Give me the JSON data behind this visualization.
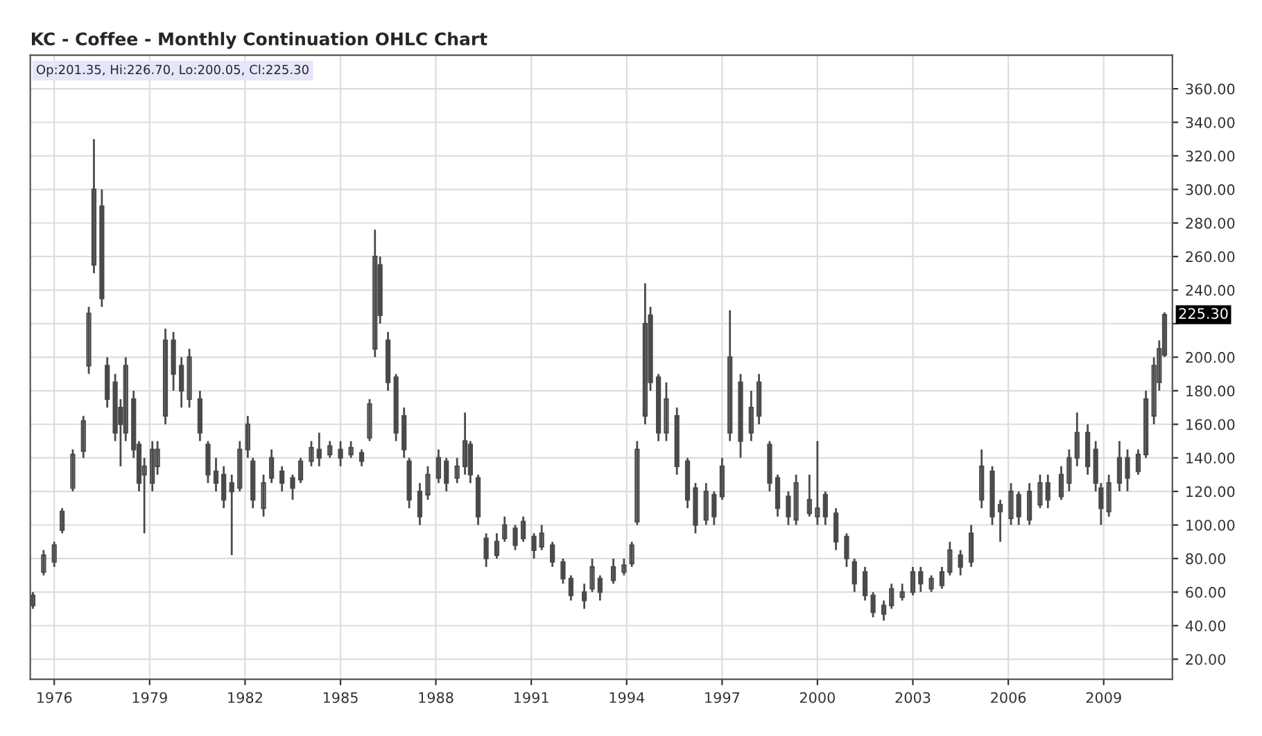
{
  "chart_data": {
    "type": "candlestick",
    "title": "KC - Coffee - Monthly Continuation OHLC Chart",
    "color": "#4a4a4a",
    "grid": true,
    "xlim": [
      "1975-04",
      "2011-03"
    ],
    "xticks": [
      "1976",
      "1979",
      "1982",
      "1985",
      "1988",
      "1991",
      "1994",
      "1997",
      "2000",
      "2003",
      "2006",
      "2009"
    ],
    "ylim": [
      8,
      380
    ],
    "yticks": [
      {
        "value": 20,
        "label": "20.00"
      },
      {
        "value": 40,
        "label": "40.00"
      },
      {
        "value": 60,
        "label": "60.00"
      },
      {
        "value": 80,
        "label": "80.00"
      },
      {
        "value": 100,
        "label": "100.00"
      },
      {
        "value": 120,
        "label": "120.00"
      },
      {
        "value": 140,
        "label": "140.00"
      },
      {
        "value": 160,
        "label": "160.00"
      },
      {
        "value": 180,
        "label": "180.00"
      },
      {
        "value": 200,
        "label": "200.00"
      },
      {
        "value": 220,
        "label": null
      },
      {
        "value": 240,
        "label": "240.00"
      },
      {
        "value": 260,
        "label": "260.00"
      },
      {
        "value": 280,
        "label": "280.00"
      },
      {
        "value": 300,
        "label": "300.00"
      },
      {
        "value": 320,
        "label": "320.00"
      },
      {
        "value": 340,
        "label": "340.00"
      },
      {
        "value": 360,
        "label": "360.00"
      }
    ],
    "annotations": [
      "Op:201.35, Hi:226.70, Lo:200.05, Cl:225.30",
      "225.30"
    ],
    "x": [
      "1975-05",
      "1975-09",
      "1976-01",
      "1976-04",
      "1976-08",
      "1976-12",
      "1977-02",
      "1977-04",
      "1977-07",
      "1977-09",
      "1977-12",
      "1978-02",
      "1978-04",
      "1978-07",
      "1978-09",
      "1978-11",
      "1979-02",
      "1979-04",
      "1979-07",
      "1979-10",
      "1980-01",
      "1980-04",
      "1980-08",
      "1980-11",
      "1981-02",
      "1981-05",
      "1981-08",
      "1981-11",
      "1982-02",
      "1982-04",
      "1982-08",
      "1982-11",
      "1983-03",
      "1983-07",
      "1983-10",
      "1984-02",
      "1984-05",
      "1984-09",
      "1985-01",
      "1985-05",
      "1985-09",
      "1985-12",
      "1986-02",
      "1986-04",
      "1986-07",
      "1986-10",
      "1987-01",
      "1987-03",
      "1987-07",
      "1987-10",
      "1988-02",
      "1988-05",
      "1988-09",
      "1988-12",
      "1989-02",
      "1989-05",
      "1989-08",
      "1989-12",
      "1990-03",
      "1990-07",
      "1990-10",
      "1991-02",
      "1991-05",
      "1991-09",
      "1992-01",
      "1992-04",
      "1992-09",
      "1992-12",
      "1993-03",
      "1993-08",
      "1993-12",
      "1994-03",
      "1994-05",
      "1994-08",
      "1994-10",
      "1995-01",
      "1995-04",
      "1995-08",
      "1995-12",
      "1996-03",
      "1996-07",
      "1996-10",
      "1997-01",
      "1997-04",
      "1997-08",
      "1997-12",
      "1998-03",
      "1998-07",
      "1998-10",
      "1999-02",
      "1999-05",
      "1999-10",
      "2000-01",
      "2000-04",
      "2000-08",
      "2000-12",
      "2001-03",
      "2001-07",
      "2001-10",
      "2002-02",
      "2002-05",
      "2002-09",
      "2003-01",
      "2003-04",
      "2003-08",
      "2003-12",
      "2004-03",
      "2004-07",
      "2004-11",
      "2005-03",
      "2005-07",
      "2005-10",
      "2006-02",
      "2006-05",
      "2006-09",
      "2007-01",
      "2007-04",
      "2007-09",
      "2007-12",
      "2008-03",
      "2008-07",
      "2008-10",
      "2008-12",
      "2009-03",
      "2009-07",
      "2009-10",
      "2010-02",
      "2010-05",
      "2010-08",
      "2010-10",
      "2010-12"
    ],
    "ohlc": [
      [
        52,
        60,
        50,
        58
      ],
      [
        72,
        85,
        70,
        82
      ],
      [
        78,
        90,
        75,
        88
      ],
      [
        97,
        110,
        95,
        108
      ],
      [
        122,
        145,
        120,
        142
      ],
      [
        144,
        165,
        140,
        162
      ],
      [
        195,
        230,
        190,
        226
      ],
      [
        255,
        330,
        250,
        300
      ],
      [
        290,
        300,
        230,
        235
      ],
      [
        195,
        200,
        170,
        175
      ],
      [
        185,
        190,
        150,
        155
      ],
      [
        170,
        175,
        135,
        160
      ],
      [
        155,
        200,
        150,
        195
      ],
      [
        175,
        180,
        140,
        145
      ],
      [
        148,
        150,
        120,
        125
      ],
      [
        130,
        140,
        95,
        135
      ],
      [
        125,
        150,
        120,
        145
      ],
      [
        135,
        150,
        130,
        145
      ],
      [
        165,
        217,
        160,
        210
      ],
      [
        210,
        215,
        180,
        190
      ],
      [
        195,
        200,
        170,
        180
      ],
      [
        175,
        205,
        170,
        200
      ],
      [
        175,
        180,
        150,
        155
      ],
      [
        148,
        150,
        125,
        130
      ],
      [
        132,
        140,
        120,
        125
      ],
      [
        130,
        135,
        110,
        115
      ],
      [
        125,
        130,
        82,
        120
      ],
      [
        122,
        150,
        120,
        145
      ],
      [
        145,
        165,
        140,
        160
      ],
      [
        138,
        140,
        110,
        115
      ],
      [
        110,
        130,
        105,
        125
      ],
      [
        128,
        145,
        125,
        140
      ],
      [
        132,
        135,
        120,
        125
      ],
      [
        128,
        130,
        115,
        122
      ],
      [
        127,
        140,
        125,
        138
      ],
      [
        138,
        150,
        135,
        146
      ],
      [
        145,
        155,
        135,
        140
      ],
      [
        142,
        150,
        140,
        147
      ],
      [
        145,
        150,
        135,
        140
      ],
      [
        142,
        150,
        140,
        146
      ],
      [
        143,
        145,
        135,
        138
      ],
      [
        152,
        175,
        150,
        172
      ],
      [
        205,
        276,
        200,
        260
      ],
      [
        255,
        260,
        220,
        225
      ],
      [
        210,
        215,
        180,
        185
      ],
      [
        188,
        190,
        150,
        155
      ],
      [
        165,
        170,
        140,
        145
      ],
      [
        138,
        140,
        110,
        115
      ],
      [
        120,
        125,
        100,
        105
      ],
      [
        118,
        135,
        115,
        130
      ],
      [
        128,
        145,
        125,
        140
      ],
      [
        138,
        140,
        120,
        125
      ],
      [
        128,
        140,
        125,
        135
      ],
      [
        135,
        167,
        130,
        150
      ],
      [
        148,
        150,
        125,
        130
      ],
      [
        128,
        130,
        100,
        105
      ],
      [
        92,
        95,
        75,
        80
      ],
      [
        82,
        95,
        80,
        90
      ],
      [
        92,
        105,
        90,
        100
      ],
      [
        98,
        100,
        85,
        88
      ],
      [
        92,
        105,
        90,
        102
      ],
      [
        93,
        95,
        80,
        85
      ],
      [
        87,
        100,
        85,
        95
      ],
      [
        88,
        90,
        75,
        78
      ],
      [
        78,
        80,
        65,
        68
      ],
      [
        68,
        70,
        55,
        58
      ],
      [
        60,
        65,
        50,
        55
      ],
      [
        62,
        80,
        60,
        75
      ],
      [
        68,
        70,
        55,
        60
      ],
      [
        67,
        80,
        65,
        75
      ],
      [
        72,
        80,
        70,
        76
      ],
      [
        77,
        90,
        75,
        88
      ],
      [
        102,
        150,
        100,
        145
      ],
      [
        165,
        244,
        160,
        220
      ],
      [
        225,
        230,
        180,
        185
      ],
      [
        188,
        190,
        150,
        155
      ],
      [
        155,
        185,
        150,
        175
      ],
      [
        165,
        170,
        130,
        135
      ],
      [
        138,
        140,
        110,
        115
      ],
      [
        122,
        125,
        95,
        100
      ],
      [
        103,
        125,
        100,
        120
      ],
      [
        118,
        120,
        100,
        105
      ],
      [
        117,
        140,
        115,
        135
      ],
      [
        155,
        228,
        150,
        200
      ],
      [
        185,
        190,
        140,
        150
      ],
      [
        155,
        180,
        150,
        170
      ],
      [
        165,
        190,
        160,
        185
      ],
      [
        148,
        150,
        120,
        125
      ],
      [
        128,
        130,
        105,
        110
      ],
      [
        117,
        120,
        100,
        105
      ],
      [
        103,
        130,
        100,
        125
      ],
      [
        107,
        130,
        105,
        115
      ],
      [
        105,
        150,
        100,
        110
      ],
      [
        118,
        120,
        100,
        105
      ],
      [
        107,
        110,
        85,
        90
      ],
      [
        93,
        95,
        75,
        80
      ],
      [
        78,
        80,
        60,
        65
      ],
      [
        72,
        75,
        55,
        58
      ],
      [
        58,
        60,
        45,
        48
      ],
      [
        47,
        55,
        43,
        52
      ],
      [
        52,
        65,
        50,
        62
      ],
      [
        57,
        65,
        55,
        60
      ],
      [
        60,
        75,
        58,
        72
      ],
      [
        72,
        75,
        60,
        65
      ],
      [
        62,
        70,
        60,
        68
      ],
      [
        64,
        75,
        62,
        72
      ],
      [
        72,
        90,
        70,
        85
      ],
      [
        82,
        85,
        70,
        75
      ],
      [
        78,
        100,
        75,
        95
      ],
      [
        115,
        145,
        110,
        135
      ],
      [
        132,
        135,
        100,
        105
      ],
      [
        108,
        115,
        90,
        112
      ],
      [
        104,
        125,
        100,
        120
      ],
      [
        118,
        120,
        100,
        105
      ],
      [
        103,
        125,
        100,
        120
      ],
      [
        112,
        130,
        110,
        125
      ],
      [
        125,
        130,
        110,
        115
      ],
      [
        117,
        135,
        115,
        130
      ],
      [
        125,
        145,
        120,
        140
      ],
      [
        140,
        167,
        135,
        155
      ],
      [
        155,
        160,
        130,
        135
      ],
      [
        145,
        150,
        120,
        125
      ],
      [
        122,
        125,
        100,
        110
      ],
      [
        108,
        130,
        105,
        125
      ],
      [
        125,
        150,
        120,
        140
      ],
      [
        140,
        145,
        120,
        128
      ],
      [
        132,
        145,
        130,
        142
      ],
      [
        142,
        180,
        140,
        175
      ],
      [
        165,
        200,
        160,
        195
      ],
      [
        185,
        210,
        180,
        205
      ],
      [
        201.35,
        226.7,
        200.05,
        225.3
      ]
    ]
  }
}
